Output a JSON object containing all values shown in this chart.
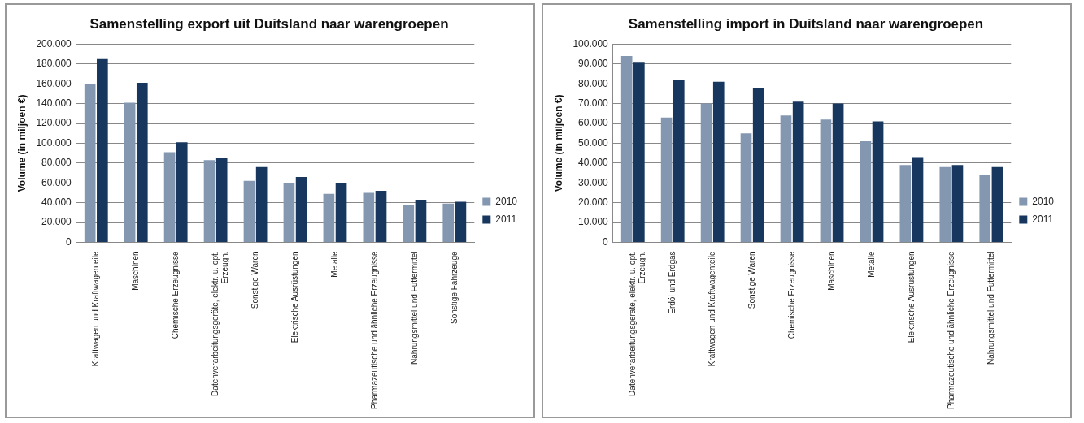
{
  "chart_data": [
    {
      "type": "bar",
      "title": "Samenstelling export uit Duitsland naar warengroepen",
      "ylabel": "Volume (in miljoen €)",
      "categories": [
        "Kraftwagen und Kraftwagenteile",
        "Maschinen",
        "Chemische Erzeugnisse",
        "Datenverarbeitungsgeräte, elektr. u. opt.\nErzeugn.",
        "Sonstige Waren",
        "Elektrische Ausrüstungen",
        "Metalle",
        "Pharmazeutische und ähnliche Erzeugnisse",
        "Nahrungsmittel und Futtermittel",
        "Sonstige Fahrzeuge"
      ],
      "series": [
        {
          "name": "2010",
          "color": "#8497b0",
          "values": [
            160000,
            141000,
            91000,
            83000,
            62000,
            60000,
            49000,
            50000,
            38000,
            39000
          ]
        },
        {
          "name": "2011",
          "color": "#17375e",
          "values": [
            185000,
            161000,
            101000,
            85000,
            76000,
            66000,
            60000,
            52000,
            43000,
            41000
          ]
        }
      ],
      "ylim": [
        0,
        200000
      ],
      "yticks": [
        {
          "value": 0,
          "label": "0"
        },
        {
          "value": 20000,
          "label": "20.000"
        },
        {
          "value": 40000,
          "label": "40.000"
        },
        {
          "value": 60000,
          "label": "60.000"
        },
        {
          "value": 80000,
          "label": "80.000"
        },
        {
          "value": 100000,
          "label": "100.000"
        },
        {
          "value": 120000,
          "label": "120.000"
        },
        {
          "value": 140000,
          "label": "140.000"
        },
        {
          "value": 160000,
          "label": "160.000"
        },
        {
          "value": 180000,
          "label": "180.000"
        },
        {
          "value": 200000,
          "label": "200.000"
        }
      ],
      "grid": "y",
      "legend": "right"
    },
    {
      "type": "bar",
      "title": "Samenstelling import in Duitsland naar warengroepen",
      "ylabel": "Volume (in miljoen €)",
      "categories": [
        "Datenverarbeitungsgeräte, elektr. u. opt.\nErzeugn.",
        "Erdöl und Erdgas",
        "Kraftwagen und Kraftwagenteile",
        "Sonstige Waren",
        "Chemische Erzeugnisse",
        "Maschinen",
        "Metalle",
        "Elektrische Ausrüstungen",
        "Pharmazeutische und ähnliche Erzeugnisse",
        "Nahrungsmittel und Futtermittel"
      ],
      "series": [
        {
          "name": "2010",
          "color": "#8497b0",
          "values": [
            94000,
            63000,
            70000,
            55000,
            64000,
            62000,
            51000,
            39000,
            38000,
            34000
          ]
        },
        {
          "name": "2011",
          "color": "#17375e",
          "values": [
            91000,
            82000,
            81000,
            78000,
            71000,
            70000,
            61000,
            43000,
            39000,
            38000
          ]
        }
      ],
      "ylim": [
        0,
        100000
      ],
      "yticks": [
        {
          "value": 0,
          "label": "0"
        },
        {
          "value": 10000,
          "label": "10.000"
        },
        {
          "value": 20000,
          "label": "20.000"
        },
        {
          "value": 30000,
          "label": "30.000"
        },
        {
          "value": 40000,
          "label": "40.000"
        },
        {
          "value": 50000,
          "label": "50.000"
        },
        {
          "value": 60000,
          "label": "60.000"
        },
        {
          "value": 70000,
          "label": "70.000"
        },
        {
          "value": 80000,
          "label": "80.000"
        },
        {
          "value": 90000,
          "label": "90.000"
        },
        {
          "value": 100000,
          "label": "100.000"
        }
      ],
      "grid": "y",
      "legend": "right"
    }
  ]
}
